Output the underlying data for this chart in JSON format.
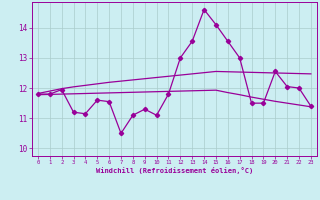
{
  "xlabel": "Windchill (Refroidissement éolien,°C)",
  "ylabel": "",
  "background_color": "#cceef2",
  "line_color": "#990099",
  "grid_color": "#aacccc",
  "x_values": [
    0,
    1,
    2,
    3,
    4,
    5,
    6,
    7,
    8,
    9,
    10,
    11,
    12,
    13,
    14,
    15,
    16,
    17,
    18,
    19,
    20,
    21,
    22,
    23
  ],
  "main_line": [
    11.8,
    11.8,
    11.95,
    11.2,
    11.15,
    11.6,
    11.55,
    10.5,
    11.1,
    11.3,
    11.1,
    11.8,
    13.0,
    13.55,
    14.6,
    14.1,
    13.55,
    13.0,
    11.5,
    11.5,
    12.55,
    12.05,
    12.0,
    11.4
  ],
  "trend_upper": [
    11.82,
    11.9,
    11.98,
    12.04,
    12.09,
    12.14,
    12.19,
    12.23,
    12.27,
    12.31,
    12.35,
    12.39,
    12.43,
    12.47,
    12.51,
    12.55,
    12.54,
    12.53,
    12.52,
    12.51,
    12.5,
    12.49,
    12.48,
    12.47
  ],
  "trend_lower": [
    11.78,
    11.79,
    11.8,
    11.81,
    11.82,
    11.83,
    11.84,
    11.85,
    11.86,
    11.87,
    11.88,
    11.89,
    11.9,
    11.91,
    11.92,
    11.93,
    11.85,
    11.78,
    11.7,
    11.63,
    11.56,
    11.5,
    11.44,
    11.38
  ],
  "ylim": [
    9.75,
    14.85
  ],
  "yticks": [
    10,
    11,
    12,
    13,
    14
  ],
  "xlim": [
    -0.5,
    23.5
  ]
}
